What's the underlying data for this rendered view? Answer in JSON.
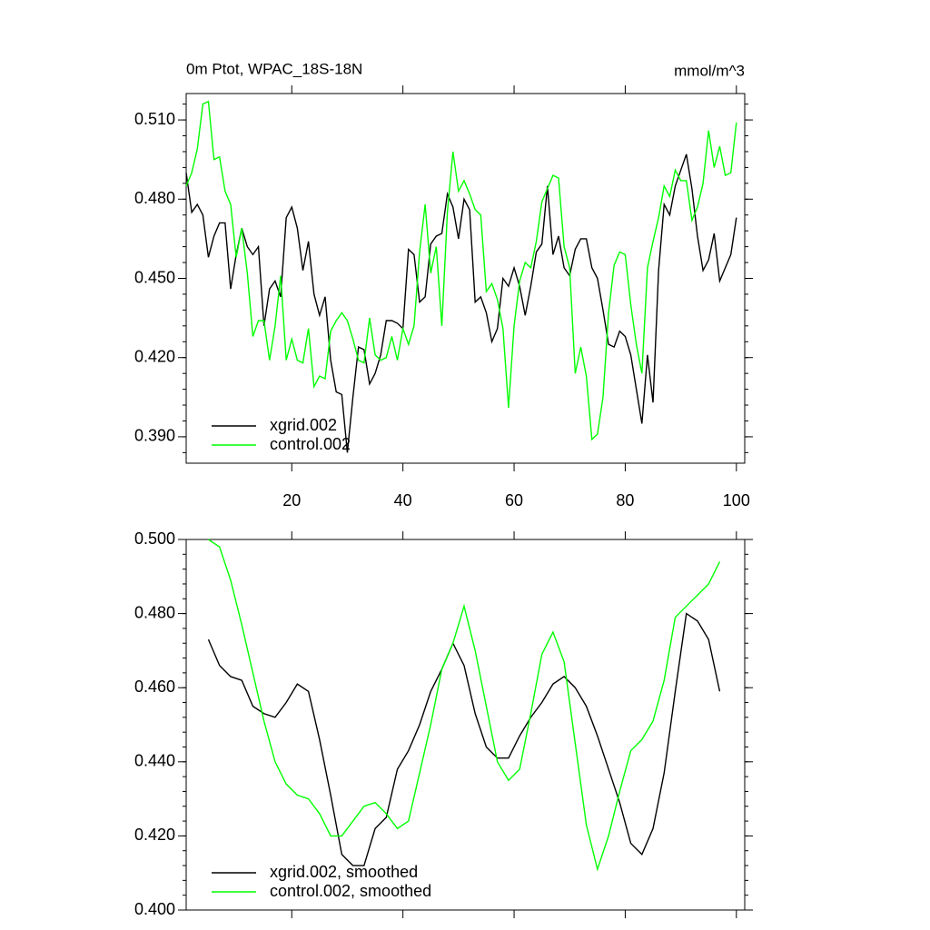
{
  "chart_data": [
    {
      "type": "line",
      "title": "0m Ptot, WPAC_18S-18N",
      "right_title": "mmol/m^3",
      "x": [
        1,
        2,
        3,
        4,
        5,
        6,
        7,
        8,
        9,
        10,
        11,
        12,
        13,
        14,
        15,
        16,
        17,
        18,
        19,
        20,
        21,
        22,
        23,
        24,
        25,
        26,
        27,
        28,
        29,
        30,
        31,
        32,
        33,
        34,
        35,
        36,
        37,
        38,
        39,
        40,
        41,
        42,
        43,
        44,
        45,
        46,
        47,
        48,
        49,
        50,
        51,
        52,
        53,
        54,
        55,
        56,
        57,
        58,
        59,
        60,
        61,
        62,
        63,
        64,
        65,
        66,
        67,
        68,
        69,
        70,
        71,
        72,
        73,
        74,
        75,
        76,
        77,
        78,
        79,
        80,
        81,
        82,
        83,
        84,
        85,
        86,
        87,
        88,
        89,
        90,
        91,
        92,
        93,
        94,
        95,
        96,
        97,
        98,
        99,
        100
      ],
      "series": [
        {
          "name": "xgrid.002",
          "color": "#000000",
          "values": [
            0.49,
            0.475,
            0.478,
            0.474,
            0.458,
            0.466,
            0.471,
            0.471,
            0.446,
            0.459,
            0.469,
            0.462,
            0.459,
            0.462,
            0.432,
            0.446,
            0.449,
            0.443,
            0.473,
            0.477,
            0.469,
            0.453,
            0.464,
            0.444,
            0.436,
            0.443,
            0.419,
            0.407,
            0.406,
            0.384,
            0.405,
            0.424,
            0.423,
            0.41,
            0.414,
            0.421,
            0.434,
            0.434,
            0.433,
            0.431,
            0.461,
            0.459,
            0.441,
            0.443,
            0.463,
            0.466,
            0.467,
            0.482,
            0.477,
            0.465,
            0.48,
            0.476,
            0.441,
            0.443,
            0.437,
            0.426,
            0.431,
            0.45,
            0.447,
            0.454,
            0.447,
            0.436,
            0.447,
            0.46,
            0.463,
            0.485,
            0.459,
            0.466,
            0.454,
            0.451,
            0.461,
            0.465,
            0.465,
            0.454,
            0.45,
            0.438,
            0.425,
            0.424,
            0.43,
            0.428,
            0.421,
            0.408,
            0.395,
            0.421,
            0.403,
            0.453,
            0.478,
            0.474,
            0.485,
            0.491,
            0.497,
            0.484,
            0.466,
            0.453,
            0.457,
            0.467,
            0.449,
            0.454,
            0.459,
            0.473
          ]
        },
        {
          "name": "control.002",
          "color": "#00ff00",
          "values": [
            0.485,
            0.49,
            0.499,
            0.516,
            0.517,
            0.495,
            0.496,
            0.483,
            0.478,
            0.458,
            0.469,
            0.452,
            0.428,
            0.434,
            0.434,
            0.419,
            0.432,
            0.451,
            0.419,
            0.427,
            0.419,
            0.418,
            0.431,
            0.409,
            0.413,
            0.412,
            0.43,
            0.434,
            0.437,
            0.434,
            0.427,
            0.419,
            0.418,
            0.435,
            0.421,
            0.419,
            0.42,
            0.428,
            0.419,
            0.431,
            0.425,
            0.432,
            0.46,
            0.478,
            0.452,
            0.462,
            0.432,
            0.475,
            0.498,
            0.483,
            0.487,
            0.482,
            0.476,
            0.474,
            0.445,
            0.448,
            0.442,
            0.431,
            0.401,
            0.432,
            0.449,
            0.456,
            0.454,
            0.464,
            0.479,
            0.484,
            0.489,
            0.488,
            0.462,
            0.454,
            0.414,
            0.424,
            0.413,
            0.389,
            0.391,
            0.405,
            0.437,
            0.455,
            0.46,
            0.459,
            0.44,
            0.425,
            0.414,
            0.454,
            0.464,
            0.473,
            0.485,
            0.481,
            0.491,
            0.487,
            0.487,
            0.472,
            0.477,
            0.486,
            0.506,
            0.492,
            0.5,
            0.489,
            0.49,
            0.509
          ]
        }
      ],
      "xlim": [
        1,
        101.5
      ],
      "ylim": [
        0.38,
        0.52
      ],
      "xticks": [
        20,
        40,
        60,
        80,
        100
      ],
      "xtick_labels": true,
      "yticks": [
        {
          "value": 0.39,
          "label": "0.390"
        },
        {
          "value": 0.42,
          "label": "0.420"
        },
        {
          "value": 0.45,
          "label": "0.450"
        },
        {
          "value": 0.48,
          "label": "0.480"
        },
        {
          "value": 0.51,
          "label": "0.510"
        }
      ],
      "legend": "lower left"
    },
    {
      "type": "line",
      "x": [
        5,
        7,
        9,
        11,
        13,
        15,
        17,
        19,
        21,
        23,
        25,
        27,
        29,
        31,
        33,
        35,
        37,
        39,
        41,
        43,
        45,
        47,
        49,
        51,
        53,
        55,
        57,
        59,
        61,
        63,
        65,
        67,
        69,
        71,
        73,
        75,
        77,
        79,
        81,
        83,
        85,
        87,
        89,
        91,
        93,
        95,
        97
      ],
      "series": [
        {
          "name": "xgrid.002, smoothed",
          "color": "#000000",
          "values": [
            0.473,
            0.466,
            0.463,
            0.462,
            0.455,
            0.453,
            0.452,
            0.456,
            0.461,
            0.459,
            0.446,
            0.431,
            0.415,
            0.412,
            0.412,
            0.422,
            0.425,
            0.438,
            0.443,
            0.45,
            0.459,
            0.465,
            0.472,
            0.466,
            0.453,
            0.444,
            0.441,
            0.441,
            0.447,
            0.452,
            0.456,
            0.461,
            0.463,
            0.46,
            0.455,
            0.447,
            0.438,
            0.429,
            0.418,
            0.415,
            0.422,
            0.437,
            0.459,
            0.48,
            0.478,
            0.473,
            0.459
          ]
        },
        {
          "name": "control.002, smoothed",
          "color": "#00ff00",
          "values": [
            0.5,
            0.498,
            0.489,
            0.477,
            0.464,
            0.451,
            0.44,
            0.434,
            0.431,
            0.43,
            0.426,
            0.42,
            0.42,
            0.424,
            0.428,
            0.429,
            0.426,
            0.422,
            0.424,
            0.437,
            0.45,
            0.465,
            0.472,
            0.482,
            0.47,
            0.455,
            0.44,
            0.435,
            0.438,
            0.453,
            0.469,
            0.475,
            0.467,
            0.445,
            0.423,
            0.411,
            0.42,
            0.432,
            0.443,
            0.446,
            0.451,
            0.462,
            0.479,
            0.482,
            0.485,
            0.488,
            0.494
          ]
        }
      ],
      "xlim": [
        1,
        101.5
      ],
      "ylim": [
        0.4,
        0.5
      ],
      "xticks": [
        20,
        40,
        60,
        80,
        100
      ],
      "xtick_labels": false,
      "yticks": [
        {
          "value": 0.4,
          "label": "0.400"
        },
        {
          "value": 0.42,
          "label": "0.420"
        },
        {
          "value": 0.44,
          "label": "0.440"
        },
        {
          "value": 0.46,
          "label": "0.460"
        },
        {
          "value": 0.48,
          "label": "0.480"
        },
        {
          "value": 0.5,
          "label": "0.500"
        }
      ],
      "legend": "lower left"
    }
  ]
}
